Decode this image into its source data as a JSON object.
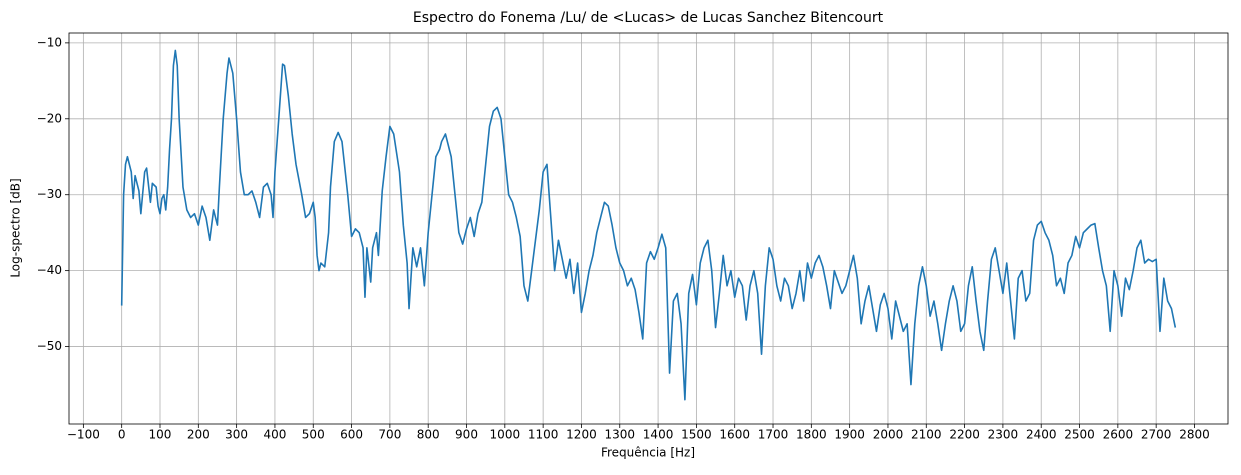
{
  "chart_data": {
    "type": "line",
    "title": "Espectro do Fonema /Lu/ de <Lucas> de Lucas Sanchez Bitencourt",
    "x_label": "Frequência [Hz]",
    "y_label": "Log-spectro [dB]",
    "x": [
      0,
      5,
      10,
      15,
      25,
      30,
      35,
      45,
      50,
      60,
      65,
      75,
      80,
      90,
      95,
      100,
      105,
      110,
      115,
      120,
      125,
      130,
      135,
      140,
      145,
      150,
      160,
      170,
      180,
      190,
      200,
      210,
      220,
      230,
      240,
      250,
      255,
      265,
      275,
      280,
      290,
      300,
      310,
      320,
      330,
      340,
      350,
      360,
      370,
      380,
      390,
      395,
      400,
      410,
      420,
      425,
      435,
      445,
      455,
      470,
      480,
      490,
      500,
      505,
      510,
      515,
      520,
      530,
      540,
      545,
      555,
      565,
      575,
      590,
      600,
      610,
      620,
      630,
      635,
      640,
      650,
      655,
      665,
      670,
      680,
      690,
      700,
      710,
      725,
      735,
      745,
      750,
      760,
      770,
      780,
      790,
      800,
      810,
      820,
      830,
      835,
      845,
      860,
      870,
      880,
      890,
      900,
      910,
      920,
      930,
      940,
      950,
      960,
      970,
      980,
      990,
      1000,
      1010,
      1020,
      1030,
      1040,
      1050,
      1060,
      1070,
      1080,
      1090,
      1100,
      1110,
      1120,
      1130,
      1140,
      1150,
      1160,
      1170,
      1180,
      1190,
      1200,
      1210,
      1220,
      1230,
      1240,
      1250,
      1260,
      1270,
      1280,
      1290,
      1300,
      1310,
      1320,
      1330,
      1340,
      1350,
      1360,
      1370,
      1380,
      1390,
      1400,
      1410,
      1420,
      1430,
      1440,
      1450,
      1460,
      1470,
      1480,
      1490,
      1500,
      1510,
      1520,
      1530,
      1540,
      1550,
      1560,
      1570,
      1580,
      1590,
      1600,
      1610,
      1620,
      1630,
      1640,
      1650,
      1660,
      1670,
      1680,
      1690,
      1700,
      1710,
      1720,
      1730,
      1740,
      1750,
      1760,
      1770,
      1780,
      1790,
      1800,
      1810,
      1820,
      1830,
      1840,
      1850,
      1860,
      1870,
      1880,
      1890,
      1900,
      1910,
      1920,
      1930,
      1940,
      1950,
      1960,
      1970,
      1980,
      1990,
      2000,
      2010,
      2020,
      2030,
      2040,
      2050,
      2060,
      2070,
      2080,
      2090,
      2100,
      2110,
      2120,
      2130,
      2140,
      2150,
      2160,
      2170,
      2180,
      2190,
      2200,
      2210,
      2220,
      2230,
      2240,
      2250,
      2260,
      2270,
      2280,
      2290,
      2300,
      2310,
      2320,
      2330,
      2340,
      2350,
      2360,
      2370,
      2380,
      2390,
      2400,
      2410,
      2420,
      2430,
      2440,
      2450,
      2460,
      2470,
      2480,
      2490,
      2500,
      2510,
      2520,
      2530,
      2540,
      2550,
      2560,
      2570,
      2580,
      2590,
      2600,
      2610,
      2620,
      2630,
      2640,
      2650,
      2660,
      2670,
      2680,
      2690,
      2700,
      2710,
      2720,
      2730,
      2740,
      2750
    ],
    "series": [
      {
        "color": "#1f77b4",
        "values": [
          -44.6,
          -30,
          -26,
          -25,
          -27,
          -30.5,
          -27.5,
          -29.5,
          -32.5,
          -27,
          -26.5,
          -31,
          -28.5,
          -29,
          -31.5,
          -32.5,
          -30.5,
          -30,
          -32,
          -29,
          -24,
          -20,
          -13,
          -11,
          -13,
          -20,
          -29,
          -32,
          -33,
          -32.5,
          -34,
          -31.5,
          -33,
          -36,
          -32,
          -34,
          -29,
          -20,
          -14,
          -12,
          -14,
          -20,
          -27,
          -30,
          -30,
          -29.5,
          -31,
          -33,
          -29,
          -28.5,
          -30,
          -33,
          -27,
          -20,
          -12.8,
          -13,
          -17,
          -22,
          -26,
          -30,
          -33,
          -32.5,
          -31,
          -33,
          -38,
          -40,
          -39,
          -39.5,
          -35,
          -29,
          -23,
          -21.8,
          -23,
          -30,
          -35.5,
          -34.5,
          -35,
          -37,
          -43.5,
          -37,
          -41.5,
          -37,
          -35,
          -38,
          -29.5,
          -25,
          -21,
          -22,
          -27,
          -34,
          -39,
          -45,
          -37,
          -39.5,
          -37,
          -42,
          -35,
          -30,
          -25,
          -24,
          -23,
          -22,
          -25,
          -30,
          -35,
          -36.5,
          -34.5,
          -33,
          -35.5,
          -32.5,
          -31,
          -26,
          -21,
          -19,
          -18.5,
          -20,
          -25,
          -30,
          -31,
          -33,
          -35.5,
          -42,
          -44,
          -40,
          -36,
          -32,
          -27,
          -26,
          -33,
          -40,
          -36,
          -38.5,
          -41,
          -38.5,
          -43,
          -39,
          -45.5,
          -43,
          -40,
          -38,
          -35,
          -33,
          -31,
          -31.5,
          -34,
          -37,
          -39,
          -40,
          -42,
          -41,
          -42.5,
          -45.5,
          -49,
          -39,
          -37.5,
          -38.5,
          -37,
          -35.2,
          -37,
          -53.5,
          -44,
          -43,
          -47,
          -57,
          -43,
          -40.5,
          -44.5,
          -39,
          -37,
          -36,
          -40,
          -47.5,
          -43,
          -38,
          -42,
          -40,
          -43.5,
          -41,
          -42,
          -46.5,
          -42,
          -40,
          -43,
          -51,
          -42,
          -37,
          -38.5,
          -42,
          -44,
          -41,
          -42,
          -45,
          -43,
          -40,
          -44,
          -39,
          -41,
          -39,
          -38,
          -39.5,
          -42,
          -45,
          -40,
          -41.5,
          -43,
          -42,
          -40,
          -38,
          -41,
          -47,
          -44,
          -42,
          -45,
          -48,
          -44.5,
          -43,
          -45,
          -49,
          -44,
          -46,
          -48,
          -47,
          -55,
          -47,
          -42,
          -39.5,
          -42,
          -46,
          -44,
          -47,
          -50.5,
          -47,
          -44,
          -42,
          -44,
          -48,
          -47,
          -42,
          -39.5,
          -44,
          -48,
          -50.5,
          -44,
          -38.5,
          -37,
          -40,
          -43,
          -39,
          -44,
          -49,
          -41,
          -40,
          -44,
          -43,
          -36,
          -34,
          -33.5,
          -35,
          -36,
          -38,
          -42,
          -41,
          -43,
          -39,
          -38,
          -35.5,
          -37,
          -35,
          -34.5,
          -34,
          -33.8,
          -37,
          -40,
          -42,
          -48,
          -40,
          -42,
          -46,
          -41,
          -42.5,
          -40,
          -37,
          -36,
          -39,
          -38.5,
          -38.8,
          -38.5,
          -48,
          -41,
          -44,
          -45,
          -47.5
        ]
      }
    ],
    "xlim": [
      -137.5,
      2887.5
    ],
    "ylim": [
      -60.2,
      -8.7
    ],
    "xticks": [
      {
        "value": -100,
        "label": "−100"
      },
      0,
      100,
      200,
      300,
      400,
      500,
      600,
      700,
      800,
      900,
      1000,
      1100,
      1200,
      1300,
      1400,
      1500,
      1600,
      1700,
      1800,
      1900,
      2000,
      2100,
      2200,
      2300,
      2400,
      2500,
      2600,
      2700,
      2800
    ],
    "yticks": [
      {
        "value": -50,
        "label": "−50"
      },
      {
        "value": -40,
        "label": "−40"
      },
      {
        "value": -30,
        "label": "−30"
      },
      {
        "value": -20,
        "label": "−20"
      },
      {
        "value": -10,
        "label": "−10"
      }
    ],
    "grid": true
  }
}
